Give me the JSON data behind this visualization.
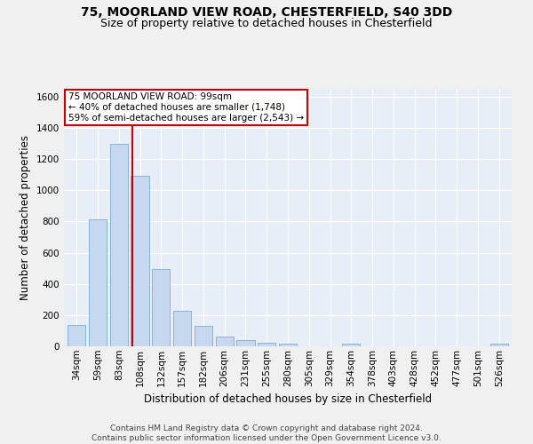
{
  "title1": "75, MOORLAND VIEW ROAD, CHESTERFIELD, S40 3DD",
  "title2": "Size of property relative to detached houses in Chesterfield",
  "xlabel": "Distribution of detached houses by size in Chesterfield",
  "ylabel": "Number of detached properties",
  "categories": [
    "34sqm",
    "59sqm",
    "83sqm",
    "108sqm",
    "132sqm",
    "157sqm",
    "182sqm",
    "206sqm",
    "231sqm",
    "255sqm",
    "280sqm",
    "305sqm",
    "329sqm",
    "354sqm",
    "378sqm",
    "403sqm",
    "428sqm",
    "452sqm",
    "477sqm",
    "501sqm",
    "526sqm"
  ],
  "values": [
    137,
    815,
    1295,
    1090,
    493,
    230,
    130,
    65,
    38,
    25,
    15,
    0,
    0,
    15,
    0,
    0,
    0,
    0,
    0,
    0,
    15
  ],
  "bar_color": "#c5d8f0",
  "bar_edge_color": "#7aadd4",
  "vline_color": "#cc0000",
  "vline_x_index": 2.62,
  "annotation_text": "75 MOORLAND VIEW ROAD: 99sqm\n← 40% of detached houses are smaller (1,748)\n59% of semi-detached houses are larger (2,543) →",
  "annotation_box_color": "white",
  "annotation_box_edge": "#cc0000",
  "ylim": [
    0,
    1650
  ],
  "yticks": [
    0,
    200,
    400,
    600,
    800,
    1000,
    1200,
    1400,
    1600
  ],
  "footer": "Contains HM Land Registry data © Crown copyright and database right 2024.\nContains public sector information licensed under the Open Government Licence v3.0.",
  "bg_color": "#e8eef8",
  "grid_color": "#ffffff",
  "fig_bg_color": "#f0f0f0",
  "title1_fontsize": 10,
  "title2_fontsize": 9,
  "axis_label_fontsize": 8.5,
  "tick_fontsize": 7.5,
  "footer_fontsize": 6.5,
  "annotation_fontsize": 7.5
}
